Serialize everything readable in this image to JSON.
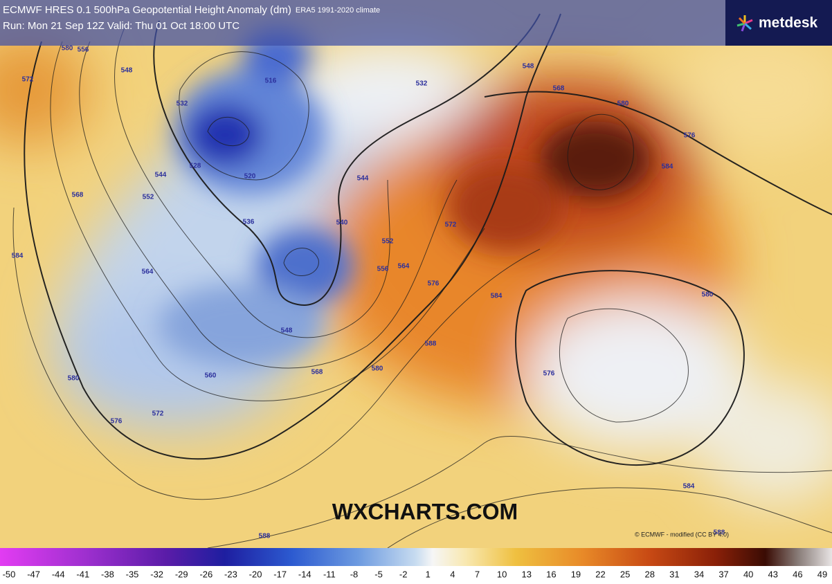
{
  "header": {
    "title": "ECMWF HRES 0.1 500hPa Geopotential Height Anomaly (dm)",
    "climate": "ERA5 1991-2020 climate",
    "run": "Run: Mon 21 Sep 12Z Valid: Thu 01 Oct 18:00 UTC",
    "logo": "metdesk"
  },
  "watermark": "WXCHARTS.COM",
  "copyright": "© ECMWF - modified (CC BY 4.0)",
  "contour_labels": [
    580,
    556,
    572,
    548,
    516,
    532,
    528,
    520,
    544,
    552,
    568,
    584,
    564,
    536,
    540,
    544,
    532,
    548,
    568,
    580,
    576,
    584,
    548,
    560,
    568,
    572,
    576,
    580,
    552,
    556,
    564,
    572,
    576,
    584,
    580,
    576,
    584,
    588,
    588,
    580,
    588
  ],
  "colorbar": {
    "ticks": [
      -50,
      -47,
      -44,
      -41,
      -38,
      -35,
      -32,
      -29,
      -26,
      -23,
      -20,
      -17,
      -14,
      -11,
      -8,
      -5,
      -2,
      1,
      4,
      7,
      10,
      13,
      16,
      19,
      22,
      25,
      28,
      31,
      34,
      37,
      40,
      43,
      46,
      49
    ]
  }
}
